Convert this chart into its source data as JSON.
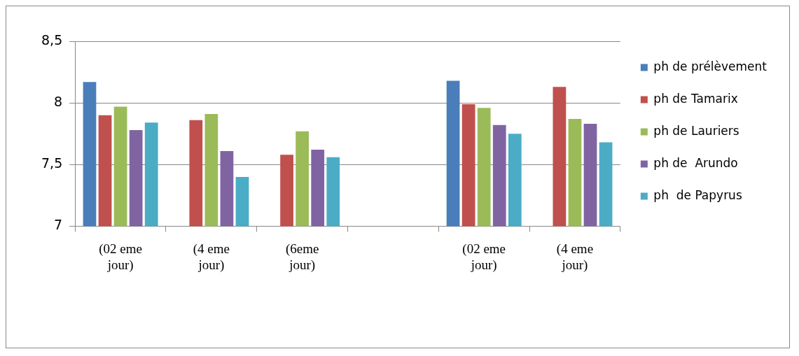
{
  "chart_data": {
    "type": "bar",
    "categories": [
      "(02 eme jour)",
      "(4 eme jour)",
      "(6eme jour)",
      null,
      "(02 eme jour)",
      "(4 eme jour)"
    ],
    "series": [
      {
        "name": "ph de prélèvement",
        "color": "#4a7ebb",
        "values": [
          8.17,
          null,
          null,
          null,
          8.18,
          null
        ]
      },
      {
        "name": "ph de Tamarix",
        "color": "#c0504d",
        "values": [
          7.9,
          7.86,
          7.58,
          null,
          7.99,
          8.13
        ]
      },
      {
        "name": "ph de Lauriers",
        "color": "#9bbb59",
        "values": [
          7.97,
          7.91,
          7.77,
          null,
          7.96,
          7.87
        ]
      },
      {
        "name": "ph de  Arundo",
        "color": "#8064a2",
        "values": [
          7.78,
          7.61,
          7.62,
          null,
          7.82,
          7.83
        ]
      },
      {
        "name": "ph  de Papyrus",
        "color": "#4bacc6",
        "values": [
          7.84,
          7.4,
          7.56,
          null,
          7.75,
          7.68
        ]
      }
    ],
    "ylim": [
      7,
      8.5
    ],
    "yticks": [
      {
        "value": 7,
        "label": "7"
      },
      {
        "value": 7.5,
        "label": "7,5"
      },
      {
        "value": 8,
        "label": "8"
      },
      {
        "value": 8.5,
        "label": "8,5"
      }
    ],
    "grid": "y",
    "legend": "right"
  }
}
